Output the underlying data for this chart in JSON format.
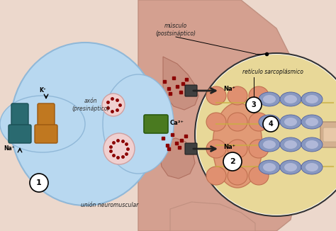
{
  "figsize": [
    4.74,
    3.26
  ],
  "dpi": 100,
  "bg_color": "#f0ddd0",
  "labels": {
    "musculo": "músculo\n(postsináptico)",
    "axon": "axón\n(presináptico)",
    "union": "unión neuromuscular",
    "reticulo": "retículo sarcoplásmico",
    "na_plus_1": "Na⁺",
    "k_plus": "K⁺",
    "na_plus_top": "Na⁺",
    "ca2_plus": "Ca²⁺",
    "na_plus_2": "Na⁺"
  },
  "neuron_color": "#b8d8f0",
  "neuron_edge": "#90b8d8",
  "muscle_color": "#d4907a",
  "muscle_edge": "#b87060",
  "dot_color": "#8b0000",
  "channel_na_color": "#2a6a70",
  "channel_k_color": "#c07820",
  "ca_color": "#4a7a20",
  "circle_fill": "#ffffff",
  "sr_bg": "#e8f0f8"
}
